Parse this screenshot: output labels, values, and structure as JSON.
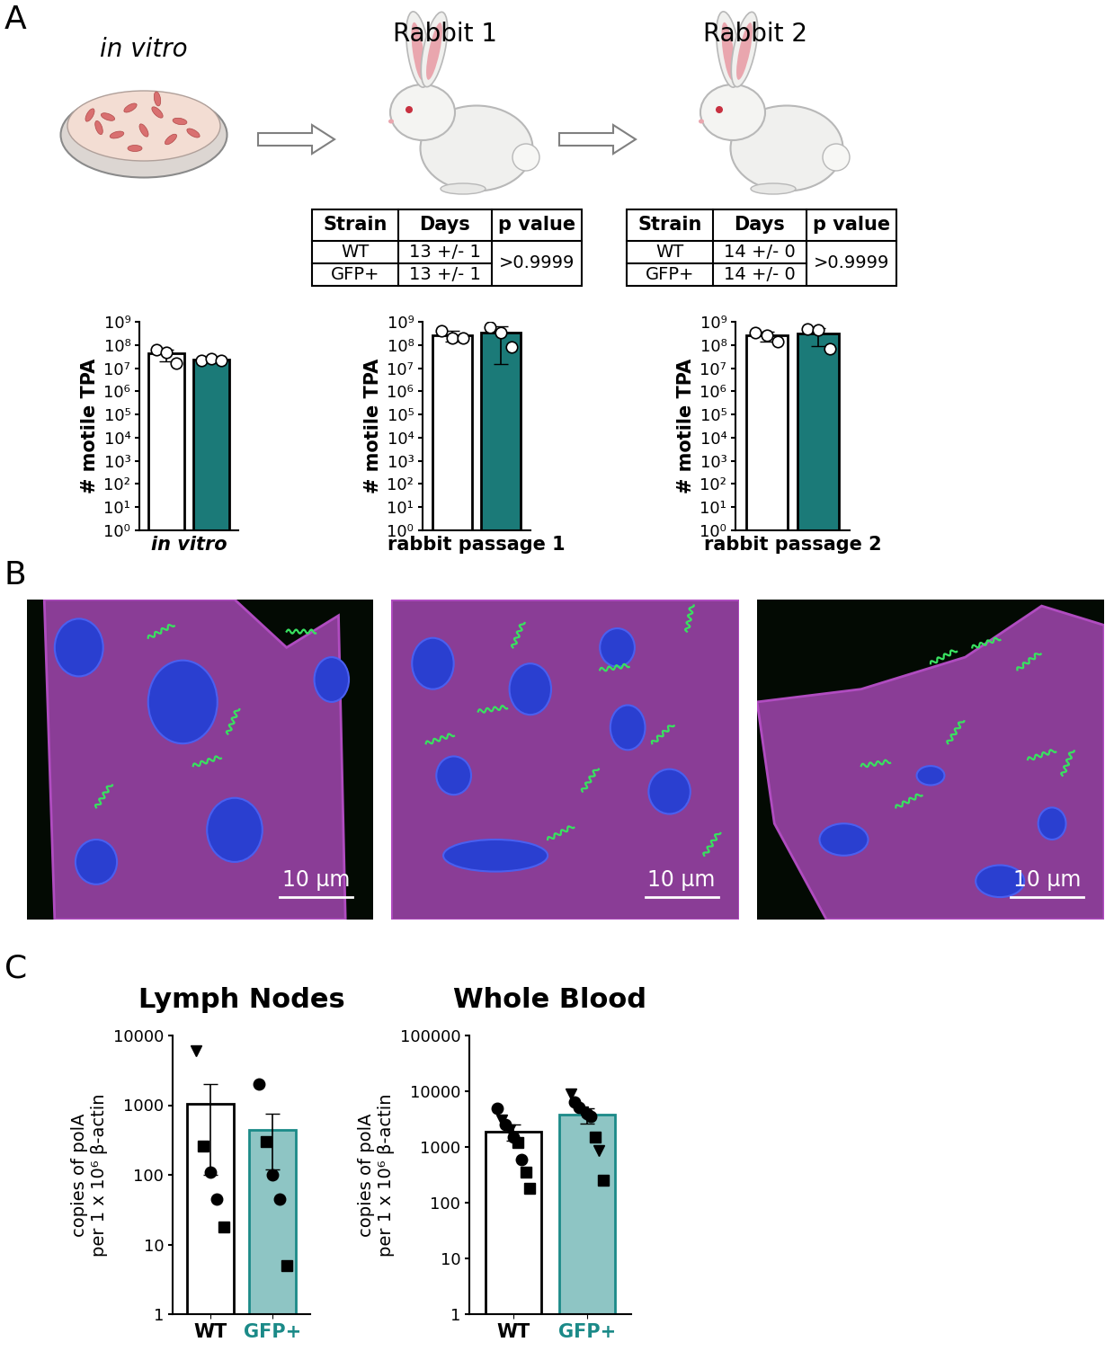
{
  "panel_labels": [
    "A",
    "B",
    "C"
  ],
  "schematic": {
    "stages": [
      {
        "label": "in vitro"
      },
      {
        "label": "Rabbit 1",
        "table": {
          "header": [
            "Strain",
            "Days",
            "p value"
          ],
          "rows": [
            [
              "WT",
              "13 +/- 1"
            ],
            [
              "GFP+",
              "13 +/- 1"
            ]
          ],
          "p_value": ">0.9999"
        }
      },
      {
        "label": "Rabbit 2",
        "table": {
          "header": [
            "Strain",
            "Days",
            "p value"
          ],
          "rows": [
            [
              "WT",
              "14 +/- 0"
            ],
            [
              "GFP+",
              "14 +/- 0"
            ]
          ],
          "p_value": ">0.9999"
        }
      }
    ]
  },
  "chart_data": [
    {
      "type": "bar",
      "xlabel": "in vitro",
      "ylabel": "# motile TPA",
      "categories": [
        null,
        null
      ],
      "values": [
        42000000,
        23000000
      ],
      "errors": [
        22000000,
        3000000
      ],
      "points": [
        [
          60000000,
          50000000,
          17000000
        ],
        [
          22000000,
          25000000,
          21000000
        ]
      ],
      "colors": [
        "#ffffff",
        "#1b7a78"
      ],
      "log": "y",
      "tick_labels": "y",
      "ylim": [
        1,
        1000000000
      ],
      "yticks": [
        {
          "value": 1,
          "label": "10⁰"
        },
        {
          "value": 10,
          "label": "10¹"
        },
        {
          "value": 100,
          "label": "10²"
        },
        {
          "value": 1000,
          "label": "10³"
        },
        {
          "value": 10000,
          "label": "10⁴"
        },
        {
          "value": 100000,
          "label": "10⁵"
        },
        {
          "value": 1000000,
          "label": "10⁶"
        },
        {
          "value": 10000000,
          "label": "10⁷"
        },
        {
          "value": 100000000,
          "label": "10⁸"
        },
        {
          "value": 1000000000,
          "label": "10⁹"
        }
      ]
    },
    {
      "type": "bar",
      "xlabel": "rabbit passage 1",
      "ylabel": "# motile TPA",
      "categories": [
        null,
        null
      ],
      "values": [
        270000000,
        340000000
      ],
      "errors": [
        130000000,
        325000000
      ],
      "points": [
        [
          400000000,
          200000000,
          200000000
        ],
        [
          600000000,
          350000000,
          80000000
        ]
      ],
      "colors": [
        "#ffffff",
        "#1b7a78"
      ],
      "log": "y",
      "tick_labels": "y",
      "ylim": [
        1,
        1000000000
      ],
      "yticks": [
        {
          "value": 1,
          "label": "10⁰"
        },
        {
          "value": 10,
          "label": "10¹"
        },
        {
          "value": 100,
          "label": "10²"
        },
        {
          "value": 1000,
          "label": "10³"
        },
        {
          "value": 10000,
          "label": "10⁴"
        },
        {
          "value": 100000,
          "label": "10⁵"
        },
        {
          "value": 1000000,
          "label": "10⁶"
        },
        {
          "value": 10000000,
          "label": "10⁷"
        },
        {
          "value": 100000000,
          "label": "10⁸"
        },
        {
          "value": 1000000000,
          "label": "10⁹"
        }
      ]
    },
    {
      "type": "bar",
      "xlabel": "rabbit passage 2",
      "ylabel": "# motile TPA",
      "categories": [
        null,
        null
      ],
      "values": [
        260000000,
        310000000
      ],
      "errors": [
        120000000,
        220000000
      ],
      "points": [
        [
          350000000,
          260000000,
          140000000
        ],
        [
          500000000,
          450000000,
          70000000
        ]
      ],
      "colors": [
        "#ffffff",
        "#1b7a78"
      ],
      "log": "y",
      "tick_labels": "y",
      "ylim": [
        1,
        1000000000
      ],
      "yticks": [
        {
          "value": 1,
          "label": "10⁰"
        },
        {
          "value": 10,
          "label": "10¹"
        },
        {
          "value": 100,
          "label": "10²"
        },
        {
          "value": 1000,
          "label": "10³"
        },
        {
          "value": 10000,
          "label": "10⁴"
        },
        {
          "value": 100000,
          "label": "10⁵"
        },
        {
          "value": 1000000,
          "label": "10⁶"
        },
        {
          "value": 10000000,
          "label": "10⁷"
        },
        {
          "value": 100000000,
          "label": "10⁸"
        },
        {
          "value": 1000000000,
          "label": "10⁹"
        }
      ]
    },
    {
      "type": "bar",
      "title": "Lymph Nodes",
      "ylabel": "copies of polA\nper 1 x 10⁶ β-actin",
      "categories": [
        "WT",
        "GFP+"
      ],
      "values": [
        1050,
        440
      ],
      "errors": [
        950,
        320
      ],
      "points": [
        [
          6000,
          260,
          110,
          45,
          18
        ],
        [
          2000,
          300,
          100,
          45,
          5
        ]
      ],
      "point_markers": [
        [
          "triangle_down",
          "square",
          "circle",
          "circle",
          "square"
        ],
        [
          "circle",
          "square",
          "circle",
          "circle",
          "square"
        ]
      ],
      "colors": [
        "#ffffff",
        "#8ec5c4"
      ],
      "log": "y",
      "ylim": [
        1,
        10000
      ],
      "yticks": [
        1,
        10,
        100,
        1000,
        10000
      ]
    },
    {
      "type": "bar",
      "title": "Whole Blood",
      "ylabel": "copies of polA\nper 1 x 10⁶ β-actin",
      "categories": [
        "WT",
        "GFP+"
      ],
      "values": [
        1900,
        3800
      ],
      "errors": [
        600,
        1200
      ],
      "points": [
        [
          5000,
          3000,
          2500,
          2000,
          1500,
          1200,
          600,
          350,
          180
        ],
        [
          9000,
          6500,
          5200,
          4200,
          4000,
          3500,
          1500,
          850,
          250
        ]
      ],
      "point_markers": [
        [
          "circle",
          "triangle_down",
          "circle",
          "triangle_down",
          "circle",
          "square",
          "circle",
          "square",
          "square"
        ],
        [
          "triangle_down",
          "circle",
          "circle",
          "triangle_down",
          "circle",
          "circle",
          "square",
          "triangle_down",
          "square"
        ]
      ],
      "colors": [
        "#ffffff",
        "#8ec5c4"
      ],
      "log": "y",
      "ylim": [
        1,
        100000
      ],
      "yticks": [
        1,
        10,
        100,
        1000,
        10000,
        100000
      ]
    }
  ],
  "images": [
    {
      "scale_bar": "10 µm"
    },
    {
      "scale_bar": "10 µm"
    },
    {
      "scale_bar": "10 µm"
    }
  ]
}
